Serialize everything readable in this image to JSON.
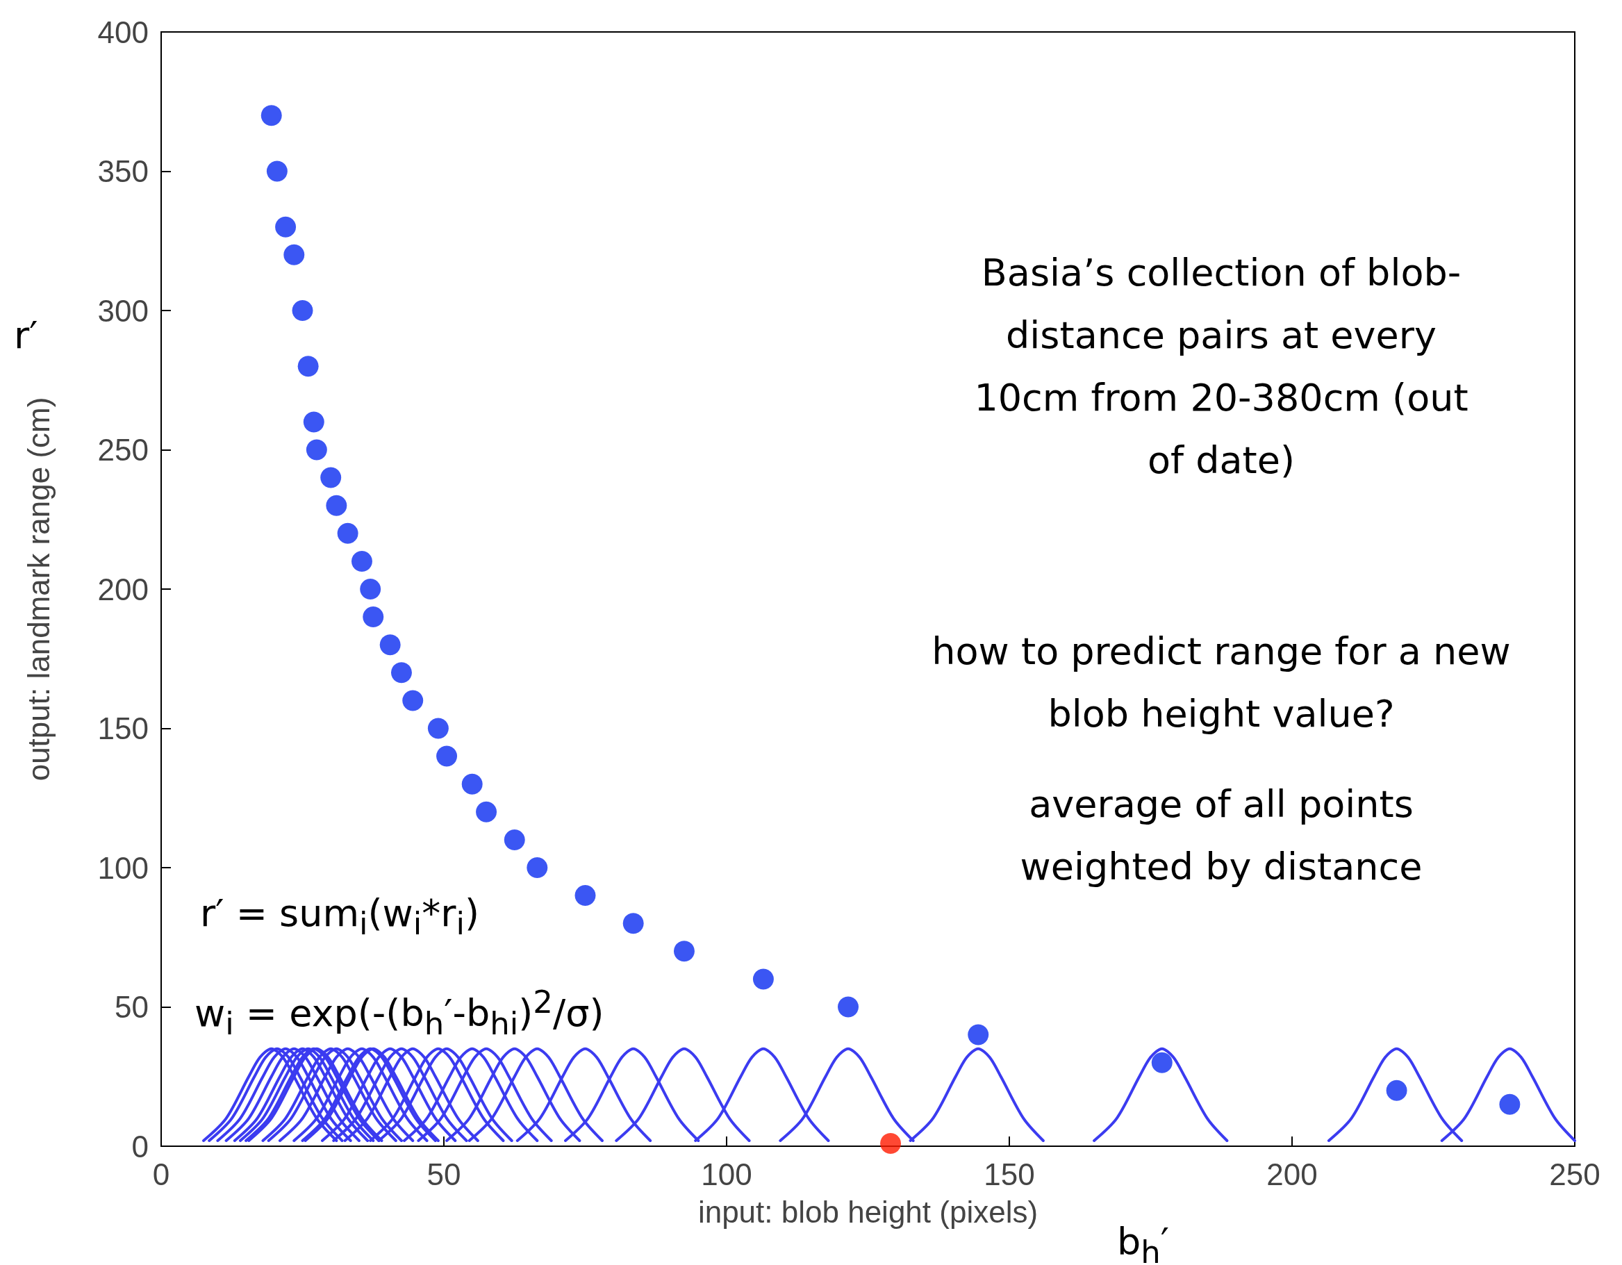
{
  "chart_data": {
    "type": "scatter",
    "xlabel": "input: blob height (pixels)",
    "ylabel": "output: landmark range (cm)",
    "xlim": [
      0,
      250
    ],
    "ylim": [
      0,
      400
    ],
    "xticks": [
      0,
      50,
      100,
      150,
      200,
      250
    ],
    "yticks": [
      0,
      50,
      100,
      150,
      200,
      250,
      300,
      350,
      400
    ],
    "marker": "circle",
    "annotations": [
      "Basia’s collection of blob-distance pairs at every 10cm from 20-380cm (out of date)",
      "how to predict range for a new blob height value?",
      "average of all points weighted by distance",
      "r′ = sum$_{i}$(w$_{i}$*r$_{i}$)",
      "w$_{i}$ = exp(-(b$_{h}$′-b$_{hi}$)$^{2}$/σ)",
      "r′",
      "b$_{h}$′"
    ],
    "series": [
      {
        "type": "line",
        "marker": "none",
        "color": "#3b3bf0",
        "x": [
          7.5,
          11.5,
          15.5,
          17.5,
          19.5,
          21.5,
          23.5,
          27.5,
          31
        ],
        "values": [
          2,
          10,
          25,
          32,
          35,
          32,
          25,
          10,
          2
        ]
      },
      {
        "type": "line",
        "marker": "none",
        "color": "#3b3bf0",
        "x": [
          8.5,
          12.5,
          16.5,
          18.5,
          20.5,
          22.5,
          24.5,
          28.5,
          32
        ],
        "values": [
          2,
          10,
          25,
          32,
          35,
          32,
          25,
          10,
          2
        ]
      },
      {
        "type": "line",
        "marker": "none",
        "color": "#3b3bf0",
        "x": [
          10,
          14,
          18,
          20,
          22,
          24,
          26,
          30,
          33.5
        ],
        "values": [
          2,
          10,
          25,
          32,
          35,
          32,
          25,
          10,
          2
        ]
      },
      {
        "type": "line",
        "marker": "none",
        "color": "#3b3bf0",
        "x": [
          11.5,
          15.5,
          19.5,
          21.5,
          23.5,
          25.5,
          27.5,
          31.5,
          35
        ],
        "values": [
          2,
          10,
          25,
          32,
          35,
          32,
          25,
          10,
          2
        ]
      },
      {
        "type": "line",
        "marker": "none",
        "color": "#3b3bf0",
        "x": [
          13,
          17,
          21,
          23,
          25,
          27,
          29,
          33,
          36.5
        ],
        "values": [
          2,
          10,
          25,
          32,
          35,
          32,
          25,
          10,
          2
        ]
      },
      {
        "type": "line",
        "marker": "none",
        "color": "#3b3bf0",
        "x": [
          14,
          18,
          22,
          24,
          26,
          28,
          30,
          34,
          37.5
        ],
        "values": [
          2,
          10,
          25,
          32,
          35,
          32,
          25,
          10,
          2
        ]
      },
      {
        "type": "line",
        "marker": "none",
        "color": "#3b3bf0",
        "x": [
          15,
          19,
          23,
          25,
          27,
          29,
          31,
          35,
          38.5
        ],
        "values": [
          2,
          10,
          25,
          32,
          35,
          32,
          25,
          10,
          2
        ]
      },
      {
        "type": "line",
        "marker": "none",
        "color": "#3b3bf0",
        "x": [
          15.5,
          19.5,
          23.5,
          25.5,
          27.5,
          29.5,
          31.5,
          35.5,
          39
        ],
        "values": [
          2,
          10,
          25,
          32,
          35,
          32,
          25,
          10,
          2
        ]
      },
      {
        "type": "line",
        "marker": "none",
        "color": "#3b3bf0",
        "x": [
          18,
          22,
          26,
          28,
          30,
          32,
          34,
          38,
          41.5
        ],
        "values": [
          2,
          10,
          25,
          32,
          35,
          32,
          25,
          10,
          2
        ]
      },
      {
        "type": "line",
        "marker": "none",
        "color": "#3b3bf0",
        "x": [
          19,
          23,
          27,
          29,
          31,
          33,
          35,
          39,
          42.5
        ],
        "values": [
          2,
          10,
          25,
          32,
          35,
          32,
          25,
          10,
          2
        ]
      },
      {
        "type": "line",
        "marker": "none",
        "color": "#3b3bf0",
        "x": [
          21,
          25,
          29,
          31,
          33,
          35,
          37,
          41,
          44.5
        ],
        "values": [
          2,
          10,
          25,
          32,
          35,
          32,
          25,
          10,
          2
        ]
      },
      {
        "type": "line",
        "marker": "none",
        "color": "#3b3bf0",
        "x": [
          23.5,
          27.5,
          31.5,
          33.5,
          35.5,
          37.5,
          39.5,
          43.5,
          47
        ],
        "values": [
          2,
          10,
          25,
          32,
          35,
          32,
          25,
          10,
          2
        ]
      },
      {
        "type": "line",
        "marker": "none",
        "color": "#3b3bf0",
        "x": [
          25,
          29,
          33,
          35,
          37,
          39,
          41,
          45,
          48.5
        ],
        "values": [
          2,
          10,
          25,
          32,
          35,
          32,
          25,
          10,
          2
        ]
      },
      {
        "type": "line",
        "marker": "none",
        "color": "#3b3bf0",
        "x": [
          25.5,
          29.5,
          33.5,
          35.5,
          37.5,
          39.5,
          41.5,
          45.5,
          49
        ],
        "values": [
          2,
          10,
          25,
          32,
          35,
          32,
          25,
          10,
          2
        ]
      },
      {
        "type": "line",
        "marker": "none",
        "color": "#3b3bf0",
        "x": [
          28.5,
          32.5,
          36.5,
          38.5,
          40.5,
          42.5,
          44.5,
          48.5,
          52
        ],
        "values": [
          2,
          10,
          25,
          32,
          35,
          32,
          25,
          10,
          2
        ]
      },
      {
        "type": "line",
        "marker": "none",
        "color": "#3b3bf0",
        "x": [
          30.5,
          34.5,
          38.5,
          40.5,
          42.5,
          44.5,
          46.5,
          50.5,
          54
        ],
        "values": [
          2,
          10,
          25,
          32,
          35,
          32,
          25,
          10,
          2
        ]
      },
      {
        "type": "line",
        "marker": "none",
        "color": "#3b3bf0",
        "x": [
          32.5,
          36.5,
          40.5,
          42.5,
          44.5,
          46.5,
          48.5,
          52.5,
          56
        ],
        "values": [
          2,
          10,
          25,
          32,
          35,
          32,
          25,
          10,
          2
        ]
      },
      {
        "type": "line",
        "marker": "none",
        "color": "#3b3bf0",
        "x": [
          37,
          41,
          45,
          47,
          49,
          51,
          53,
          57,
          60.5
        ],
        "values": [
          2,
          10,
          25,
          32,
          35,
          32,
          25,
          10,
          2
        ]
      },
      {
        "type": "line",
        "marker": "none",
        "color": "#3b3bf0",
        "x": [
          38.5,
          42.5,
          46.5,
          48.5,
          50.5,
          52.5,
          54.5,
          58.5,
          62
        ],
        "values": [
          2,
          10,
          25,
          32,
          35,
          32,
          25,
          10,
          2
        ]
      },
      {
        "type": "line",
        "marker": "none",
        "color": "#3b3bf0",
        "x": [
          43,
          47,
          51,
          53,
          55,
          57,
          59,
          63,
          66.5
        ],
        "values": [
          2,
          10,
          25,
          32,
          35,
          32,
          25,
          10,
          2
        ]
      },
      {
        "type": "line",
        "marker": "none",
        "color": "#3b3bf0",
        "x": [
          45.5,
          49.5,
          53.5,
          55.5,
          57.5,
          59.5,
          61.5,
          65.5,
          69
        ],
        "values": [
          2,
          10,
          25,
          32,
          35,
          32,
          25,
          10,
          2
        ]
      },
      {
        "type": "line",
        "marker": "none",
        "color": "#3b3bf0",
        "x": [
          50.5,
          54.5,
          58.5,
          60.5,
          62.5,
          64.5,
          66.5,
          70.5,
          74
        ],
        "values": [
          2,
          10,
          25,
          32,
          35,
          32,
          25,
          10,
          2
        ]
      },
      {
        "type": "line",
        "marker": "none",
        "color": "#3b3bf0",
        "x": [
          54.5,
          58.5,
          62.5,
          64.5,
          66.5,
          68.5,
          70.5,
          74.5,
          78
        ],
        "values": [
          2,
          10,
          25,
          32,
          35,
          32,
          25,
          10,
          2
        ]
      },
      {
        "type": "line",
        "marker": "none",
        "color": "#3b3bf0",
        "x": [
          63,
          67,
          71,
          73,
          75,
          77,
          79,
          83,
          86.5
        ],
        "values": [
          2,
          10,
          25,
          32,
          35,
          32,
          25,
          10,
          2
        ]
      },
      {
        "type": "line",
        "marker": "none",
        "color": "#3b3bf0",
        "x": [
          71.5,
          75.5,
          79.5,
          81.5,
          83.5,
          85.5,
          87.5,
          91.5,
          95
        ],
        "values": [
          2,
          10,
          25,
          32,
          35,
          32,
          25,
          10,
          2
        ]
      },
      {
        "type": "line",
        "marker": "none",
        "color": "#3b3bf0",
        "x": [
          80.5,
          84.5,
          88.5,
          90.5,
          92.5,
          94.5,
          96.5,
          100.5,
          104
        ],
        "values": [
          2,
          10,
          25,
          32,
          35,
          32,
          25,
          10,
          2
        ]
      },
      {
        "type": "line",
        "marker": "none",
        "color": "#3b3bf0",
        "x": [
          94.5,
          98.5,
          102.5,
          104.5,
          106.5,
          108.5,
          110.5,
          114.5,
          118
        ],
        "values": [
          2,
          10,
          25,
          32,
          35,
          32,
          25,
          10,
          2
        ]
      },
      {
        "type": "line",
        "marker": "none",
        "color": "#3b3bf0",
        "x": [
          109.5,
          113.5,
          117.5,
          119.5,
          121.5,
          123.5,
          125.5,
          129.5,
          133
        ],
        "values": [
          2,
          10,
          25,
          32,
          35,
          32,
          25,
          10,
          2
        ]
      },
      {
        "type": "line",
        "marker": "none",
        "color": "#3b3bf0",
        "x": [
          132.5,
          136.5,
          140.5,
          142.5,
          144.5,
          146.5,
          148.5,
          152.5,
          156
        ],
        "values": [
          2,
          10,
          25,
          32,
          35,
          32,
          25,
          10,
          2
        ]
      },
      {
        "type": "line",
        "marker": "none",
        "color": "#3b3bf0",
        "x": [
          165,
          169,
          173,
          175,
          177,
          179,
          181,
          185,
          188.5
        ],
        "values": [
          2,
          10,
          25,
          32,
          35,
          32,
          25,
          10,
          2
        ]
      },
      {
        "type": "line",
        "marker": "none",
        "color": "#3b3bf0",
        "x": [
          206.5,
          210.5,
          214.5,
          216.5,
          218.5,
          220.5,
          222.5,
          226.5,
          230
        ],
        "values": [
          2,
          10,
          25,
          32,
          35,
          32,
          25,
          10,
          2
        ]
      },
      {
        "type": "line",
        "marker": "none",
        "color": "#3b3bf0",
        "x": [
          226.5,
          230.5,
          234.5,
          236.5,
          238.5,
          240.5,
          242.5,
          246.5,
          250
        ],
        "values": [
          2,
          10,
          25,
          32,
          35,
          32,
          25,
          10,
          2
        ]
      },
      {
        "color": "#0a2cf0",
        "x": [
          19.5,
          20.5,
          22,
          23.5,
          25,
          26,
          27,
          27.5,
          30,
          31,
          33,
          35.5,
          37,
          37.5,
          40.5,
          42.5,
          44.5,
          49,
          50.5,
          55,
          57.5,
          62.5,
          66.5,
          75,
          83.5,
          92.5,
          106.5,
          121.5,
          144.5,
          177,
          218.5,
          238.5
        ],
        "values": [
          370,
          350,
          330,
          320,
          300,
          280,
          260,
          250,
          240,
          230,
          220,
          210,
          200,
          190,
          180,
          170,
          160,
          150,
          140,
          130,
          120,
          110,
          100,
          90,
          80,
          70,
          60,
          50,
          40,
          30,
          20,
          15
        ]
      },
      {
        "color": "#ff1a00",
        "x": [
          129
        ],
        "values": [
          1
        ]
      }
    ]
  }
}
